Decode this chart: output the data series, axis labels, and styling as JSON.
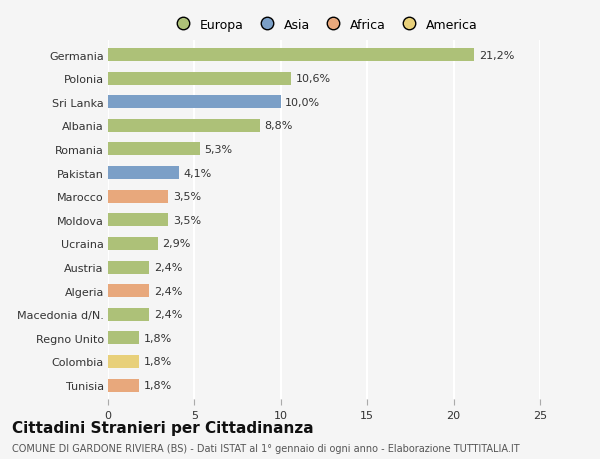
{
  "countries": [
    "Germania",
    "Polonia",
    "Sri Lanka",
    "Albania",
    "Romania",
    "Pakistan",
    "Marocco",
    "Moldova",
    "Ucraina",
    "Austria",
    "Algeria",
    "Macedonia d/N.",
    "Regno Unito",
    "Colombia",
    "Tunisia"
  ],
  "values": [
    21.2,
    10.6,
    10.0,
    8.8,
    5.3,
    4.1,
    3.5,
    3.5,
    2.9,
    2.4,
    2.4,
    2.4,
    1.8,
    1.8,
    1.8
  ],
  "labels": [
    "21,2%",
    "10,6%",
    "10,0%",
    "8,8%",
    "5,3%",
    "4,1%",
    "3,5%",
    "3,5%",
    "2,9%",
    "2,4%",
    "2,4%",
    "2,4%",
    "1,8%",
    "1,8%",
    "1,8%"
  ],
  "continents": [
    "Europa",
    "Europa",
    "Asia",
    "Europa",
    "Europa",
    "Asia",
    "Africa",
    "Europa",
    "Europa",
    "Europa",
    "Africa",
    "Europa",
    "Europa",
    "America",
    "Africa"
  ],
  "continent_colors": {
    "Europa": "#adc178",
    "Asia": "#7b9fc7",
    "Africa": "#e8a87c",
    "America": "#e8d07a"
  },
  "legend_order": [
    "Europa",
    "Asia",
    "Africa",
    "America"
  ],
  "legend_colors": [
    "#adc178",
    "#7b9fc7",
    "#e8a87c",
    "#e8d07a"
  ],
  "title": "Cittadini Stranieri per Cittadinanza",
  "subtitle": "COMUNE DI GARDONE RIVIERA (BS) - Dati ISTAT al 1° gennaio di ogni anno - Elaborazione TUTTITALIA.IT",
  "xlim": [
    0,
    25
  ],
  "xticks": [
    0,
    5,
    10,
    15,
    20,
    25
  ],
  "bg_color": "#f5f5f5",
  "grid_color": "#ffffff",
  "bar_height": 0.55,
  "label_fontsize": 8,
  "title_fontsize": 11,
  "subtitle_fontsize": 7,
  "tick_fontsize": 8,
  "legend_fontsize": 9
}
